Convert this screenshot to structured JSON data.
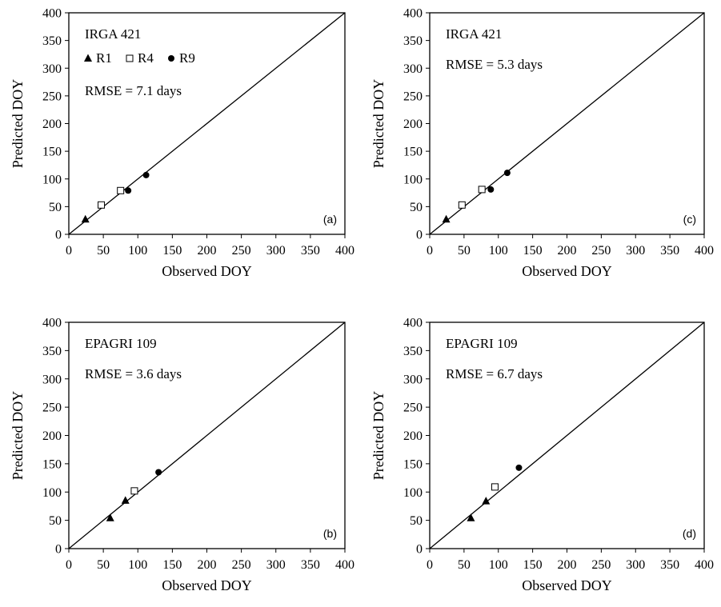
{
  "chart_data": [
    {
      "type": "scatter",
      "panel_label": "(a)",
      "cultivar": "IRGA 421",
      "rmse": "RMSE = 7.1 days",
      "xlabel": "Observed DOY",
      "ylabel": "Predicted DOY",
      "xlim": [
        0,
        400
      ],
      "ylim": [
        0,
        400
      ],
      "ticks": [
        "0",
        "50",
        "100",
        "150",
        "200",
        "250",
        "300",
        "350",
        "400"
      ],
      "legend": [
        {
          "name": "R1",
          "marker": "triangle-filled"
        },
        {
          "name": "R4",
          "marker": "square-open"
        },
        {
          "name": "R9",
          "marker": "circle-filled"
        }
      ],
      "series": [
        {
          "name": "R1",
          "marker": "triangle-filled",
          "points": [
            [
              24,
              27
            ]
          ]
        },
        {
          "name": "R4",
          "marker": "square-open",
          "points": [
            [
              47,
              53
            ],
            [
              75,
              79
            ]
          ]
        },
        {
          "name": "R9",
          "marker": "circle-filled",
          "points": [
            [
              86,
              79
            ],
            [
              112,
              107
            ]
          ]
        }
      ],
      "reference_line": "1:1"
    },
    {
      "type": "scatter",
      "panel_label": "(c)",
      "cultivar": "IRGA 421",
      "rmse": "RMSE = 5.3 days",
      "xlabel": "Observed DOY",
      "ylabel": "Predicted DOY",
      "xlim": [
        0,
        400
      ],
      "ylim": [
        0,
        400
      ],
      "ticks": [
        "0",
        "50",
        "100",
        "150",
        "200",
        "250",
        "300",
        "350",
        "400"
      ],
      "legend": [],
      "series": [
        {
          "name": "R1",
          "marker": "triangle-filled",
          "points": [
            [
              24,
              27
            ]
          ]
        },
        {
          "name": "R4",
          "marker": "square-open",
          "points": [
            [
              47,
              53
            ],
            [
              76,
              81
            ]
          ]
        },
        {
          "name": "R9",
          "marker": "circle-filled",
          "points": [
            [
              89,
              81
            ],
            [
              113,
              111
            ]
          ]
        }
      ],
      "reference_line": "1:1"
    },
    {
      "type": "scatter",
      "panel_label": "(b)",
      "cultivar": "EPAGRI 109",
      "rmse": "RMSE = 3.6 days",
      "xlabel": "Observed DOY",
      "ylabel": "Predicted DOY",
      "xlim": [
        0,
        400
      ],
      "ylim": [
        0,
        400
      ],
      "ticks": [
        "0",
        "50",
        "100",
        "150",
        "200",
        "250",
        "300",
        "350",
        "400"
      ],
      "legend": [],
      "series": [
        {
          "name": "R1",
          "marker": "triangle-filled",
          "points": [
            [
              60,
              54
            ],
            [
              82,
              85
            ]
          ]
        },
        {
          "name": "R4",
          "marker": "square-open",
          "points": [
            [
              95,
              102
            ]
          ]
        },
        {
          "name": "R9",
          "marker": "circle-filled",
          "points": [
            [
              130,
              135
            ]
          ]
        }
      ],
      "reference_line": "1:1"
    },
    {
      "type": "scatter",
      "panel_label": "(d)",
      "cultivar": "EPAGRI 109",
      "rmse": "RMSE = 6.7 days",
      "xlabel": "Observed DOY",
      "ylabel": "Predicted DOY",
      "xlim": [
        0,
        400
      ],
      "ylim": [
        0,
        400
      ],
      "ticks": [
        "0",
        "50",
        "100",
        "150",
        "200",
        "250",
        "300",
        "350",
        "400"
      ],
      "legend": [],
      "series": [
        {
          "name": "R1",
          "marker": "triangle-filled",
          "points": [
            [
              60,
              54
            ],
            [
              82,
              84
            ]
          ]
        },
        {
          "name": "R4",
          "marker": "square-open",
          "points": [
            [
              95,
              109
            ]
          ]
        },
        {
          "name": "R9",
          "marker": "circle-filled",
          "points": [
            [
              130,
              143
            ]
          ]
        }
      ],
      "reference_line": "1:1"
    }
  ]
}
